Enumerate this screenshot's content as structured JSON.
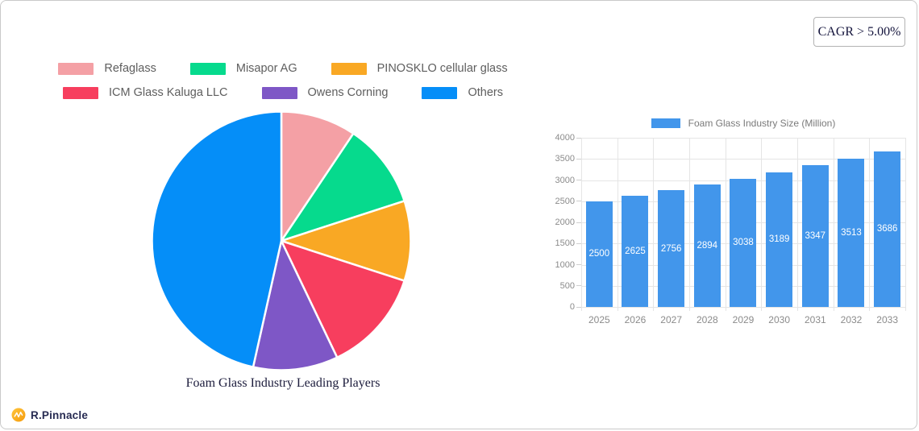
{
  "cagr": {
    "label": "CAGR > 5.00%"
  },
  "brand": {
    "name": "R.Pinnacle"
  },
  "chart_data": [
    {
      "type": "pie",
      "title": "Foam Glass Industry Leading Players",
      "legend_position": "top",
      "start_angle_deg": 0,
      "direction": "clockwise",
      "labels": [
        "Refaglass",
        "Misapor AG",
        "PINOSKLO cellular glass",
        "ICM Glass Kaluga LLC",
        "Owens Corning",
        "Others"
      ],
      "values": [
        9.4,
        10.6,
        10.0,
        12.9,
        10.6,
        46.5
      ],
      "colors": [
        "#F4A0A5",
        "#06DA8D",
        "#F9A824",
        "#F73E5E",
        "#7E57C6",
        "#058EF8"
      ]
    },
    {
      "type": "bar",
      "legend": "Foam Glass Industry Size (Million)",
      "categories": [
        "2025",
        "2026",
        "2027",
        "2028",
        "2029",
        "2030",
        "2031",
        "2032",
        "2033"
      ],
      "values": [
        2500,
        2625,
        2756,
        2894,
        3038,
        3189,
        3347,
        3513,
        3686
      ],
      "bar_color": "#4296EB",
      "ylim": [
        0,
        4000
      ],
      "yticks": [
        0,
        500,
        1000,
        1500,
        2000,
        2500,
        3000,
        3500,
        4000
      ],
      "grid": true,
      "legend_position": "top",
      "value_labels": "inside-white"
    }
  ]
}
